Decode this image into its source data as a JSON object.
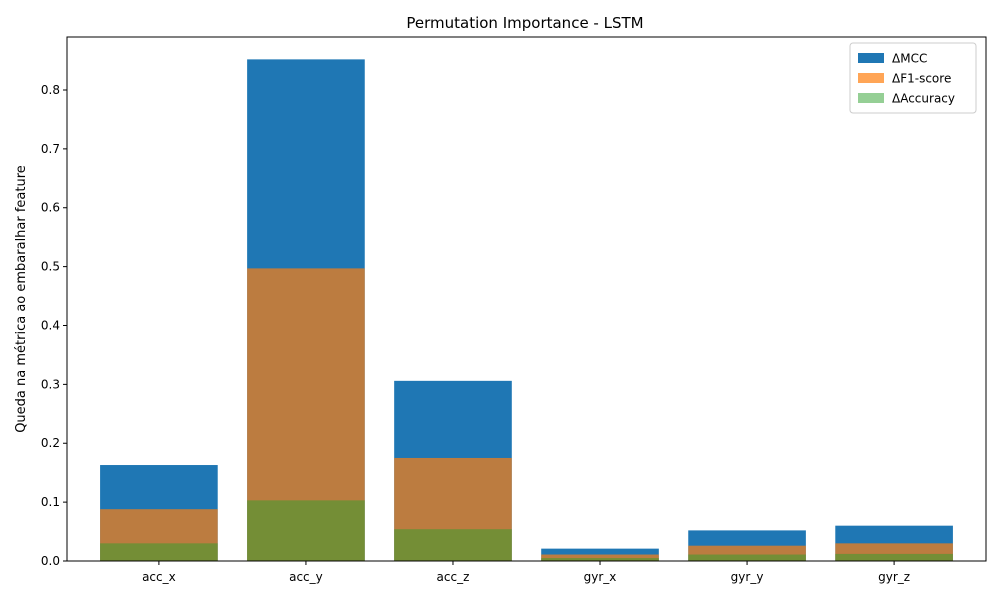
{
  "chart_data": {
    "type": "bar",
    "title": "Permutation Importance - LSTM",
    "xlabel": "",
    "ylabel": "Queda na métrica ao embaralhar feature",
    "categories": [
      "acc_x",
      "acc_y",
      "acc_z",
      "gyr_x",
      "gyr_y",
      "gyr_z"
    ],
    "ylim": [
      0,
      0.89
    ],
    "yticks": [
      "0.0",
      "0.1",
      "0.2",
      "0.3",
      "0.4",
      "0.5",
      "0.6",
      "0.7",
      "0.8"
    ],
    "grid": false,
    "legend_position": "top-right",
    "overlay": true,
    "series": [
      {
        "name": "ΔMCC",
        "color": "#1f77b4",
        "opacity": 1.0,
        "values": [
          0.163,
          0.852,
          0.306,
          0.021,
          0.052,
          0.06
        ]
      },
      {
        "name": "ΔF1-score",
        "color": "#ff7f0e",
        "opacity": 0.7,
        "values": [
          0.088,
          0.497,
          0.175,
          0.011,
          0.026,
          0.03
        ]
      },
      {
        "name": "ΔAccuracy",
        "color": "#2ca02c",
        "opacity": 0.5,
        "values": [
          0.03,
          0.103,
          0.054,
          0.005,
          0.011,
          0.012
        ]
      }
    ]
  }
}
